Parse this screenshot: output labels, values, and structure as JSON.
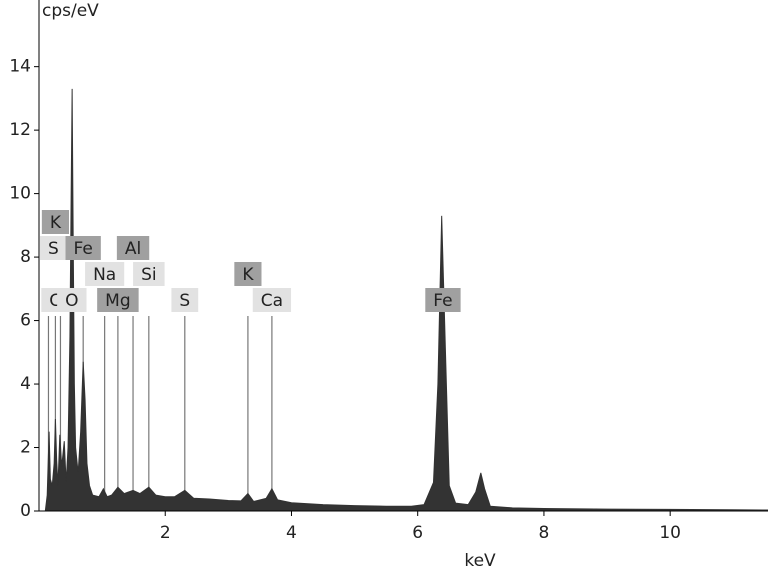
{
  "chart_data": {
    "type": "area",
    "y_label": "cps/eV",
    "x_label": "keV",
    "x": [
      0.1,
      0.13,
      0.16,
      0.18,
      0.21,
      0.24,
      0.26,
      0.28,
      0.3,
      0.33,
      0.36,
      0.4,
      0.43,
      0.46,
      0.49,
      0.51,
      0.525,
      0.54,
      0.56,
      0.58,
      0.62,
      0.66,
      0.7,
      0.73,
      0.76,
      0.8,
      0.85,
      0.95,
      1.02,
      1.08,
      1.15,
      1.25,
      1.35,
      1.49,
      1.6,
      1.74,
      1.85,
      2.0,
      2.15,
      2.31,
      2.45,
      2.7,
      3.0,
      3.2,
      3.31,
      3.4,
      3.6,
      3.69,
      3.78,
      4.0,
      4.5,
      5.0,
      5.5,
      5.9,
      6.1,
      6.25,
      6.32,
      6.38,
      6.44,
      6.5,
      6.6,
      6.8,
      6.92,
      7.0,
      7.06,
      7.15,
      7.5,
      8.0,
      9.0,
      10.0,
      11.0,
      11.55
    ],
    "values": [
      0,
      0.5,
      2.5,
      1.0,
      0.8,
      1.5,
      2.9,
      1.6,
      0.8,
      2.4,
      1.4,
      2.2,
      0.9,
      2.0,
      5.5,
      10.1,
      13.3,
      9.0,
      4.0,
      2.0,
      1.2,
      2.5,
      4.7,
      3.5,
      1.5,
      0.8,
      0.5,
      0.45,
      0.7,
      0.45,
      0.5,
      0.75,
      0.55,
      0.65,
      0.55,
      0.75,
      0.5,
      0.45,
      0.45,
      0.65,
      0.4,
      0.38,
      0.33,
      0.32,
      0.55,
      0.3,
      0.4,
      0.7,
      0.35,
      0.26,
      0.2,
      0.17,
      0.15,
      0.15,
      0.2,
      0.9,
      4,
      9.3,
      5,
      0.8,
      0.25,
      0.2,
      0.6,
      1.2,
      0.7,
      0.15,
      0.1,
      0.08,
      0.06,
      0.05,
      0.04,
      0.03
    ],
    "color": "#333333",
    "xlim": [
      0,
      11.55
    ],
    "ylim": [
      0,
      16.1
    ],
    "xticks": [
      2,
      4,
      6,
      8,
      10
    ],
    "yticks": [
      0,
      2,
      4,
      6,
      8,
      10,
      12,
      14
    ],
    "grid": false,
    "markers": [
      {
        "label": "K",
        "energy": 0.26,
        "color": "#a0a0a0"
      },
      {
        "label": "S",
        "energy": 0.15,
        "color": "#e2e2e2"
      },
      {
        "label": "Fe",
        "energy": 0.7,
        "color": "#a0a0a0"
      },
      {
        "label": "Al",
        "energy": 1.49,
        "color": "#a0a0a0"
      },
      {
        "label": "Na",
        "energy": 1.04,
        "color": "#e2e2e2"
      },
      {
        "label": "Si",
        "energy": 1.74,
        "color": "#e2e2e2"
      },
      {
        "label": "K",
        "energy": 3.31,
        "color": "#a0a0a0"
      },
      {
        "label": "Ca",
        "energy": 0.34,
        "color": "#e2e2e2"
      },
      {
        "label": "O",
        "energy": 0.52,
        "color": "#e2e2e2"
      },
      {
        "label": "Mg",
        "energy": 1.25,
        "color": "#a0a0a0"
      },
      {
        "label": "S",
        "energy": 2.31,
        "color": "#e2e2e2"
      },
      {
        "label": "Ca",
        "energy": 3.69,
        "color": "#e2e2e2"
      },
      {
        "label": "Fe",
        "energy": 6.4,
        "color": "#a0a0a0"
      }
    ]
  }
}
